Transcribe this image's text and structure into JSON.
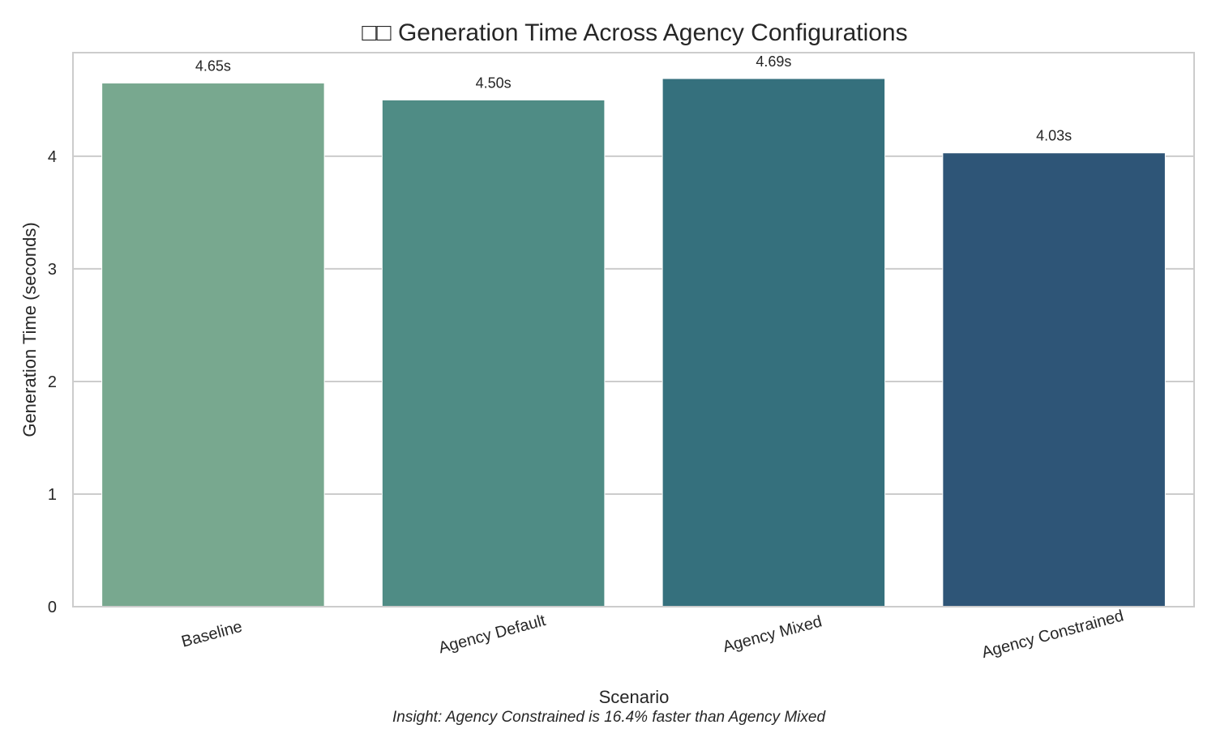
{
  "chart_data": {
    "type": "bar",
    "title": "□□ Generation Time Across Agency Configurations",
    "xlabel": "Scenario",
    "ylabel": "Generation Time (seconds)",
    "categories": [
      "Baseline",
      "Agency Default",
      "Agency Mixed",
      "Agency Constrained"
    ],
    "values": [
      4.65,
      4.5,
      4.69,
      4.03
    ],
    "data_labels": [
      "4.65s",
      "4.50s",
      "4.69s",
      "4.03s"
    ],
    "bar_colors": [
      "#78a88f",
      "#4f8c85",
      "#35707d",
      "#2e5577"
    ],
    "yticks": [
      0,
      1,
      2,
      3,
      4
    ],
    "ylim": [
      0,
      4.92
    ],
    "grid": true,
    "grid_axis": "y",
    "annotation": "Insight: Agency Constrained is 16.4% faster than Agency Mixed"
  }
}
